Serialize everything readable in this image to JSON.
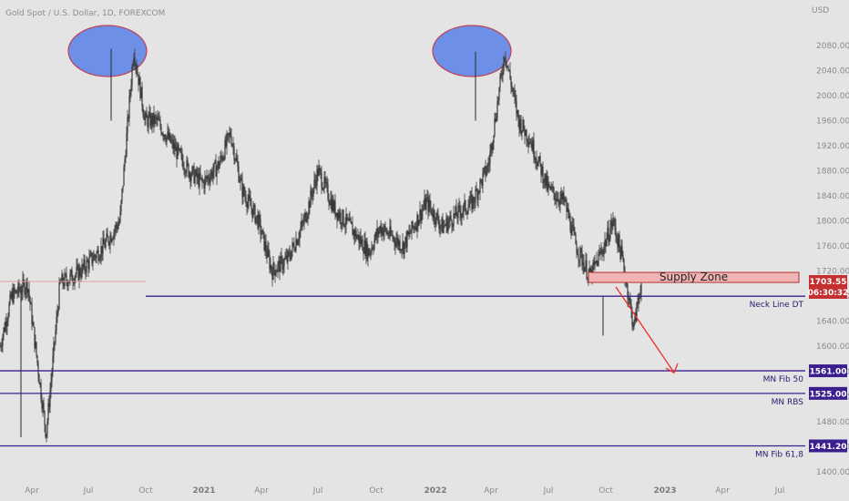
{
  "header": {
    "symbol_title": "Gold Spot / U.S. Dollar, 1D, FOREXCOM"
  },
  "chart_data": {
    "type": "candlestick",
    "title": "Gold Spot / U.S. Dollar, 1D, FOREXCOM",
    "currency_label": "USD",
    "y_ticks": [
      2080,
      2040,
      2000,
      1960,
      1920,
      1880,
      1840,
      1800,
      1760,
      1720,
      1680,
      1640,
      1600,
      1560,
      1520,
      1480,
      1440,
      1400
    ],
    "ylim": [
      1390,
      2115
    ],
    "x_ticks": [
      {
        "label": "Apr",
        "year": false
      },
      {
        "label": "Jul",
        "year": false
      },
      {
        "label": "Oct",
        "year": false
      },
      {
        "label": "2021",
        "year": true
      },
      {
        "label": "Apr",
        "year": false
      },
      {
        "label": "Jul",
        "year": false
      },
      {
        "label": "Oct",
        "year": false
      },
      {
        "label": "2022",
        "year": true
      },
      {
        "label": "Apr",
        "year": false
      },
      {
        "label": "Jul",
        "year": false
      },
      {
        "label": "Oct",
        "year": false
      },
      {
        "label": "2023",
        "year": true
      },
      {
        "label": "Apr",
        "year": false
      },
      {
        "label": "Jul",
        "year": false
      }
    ],
    "price_path": [
      [
        2020.0,
        1600
      ],
      [
        2020.05,
        1680
      ],
      [
        2020.12,
        1700
      ],
      [
        2020.2,
        1460
      ],
      [
        2020.26,
        1700
      ],
      [
        2020.35,
        1720
      ],
      [
        2020.45,
        1760
      ],
      [
        2020.52,
        1800
      ],
      [
        2020.58,
        2075
      ],
      [
        2020.63,
        1960
      ],
      [
        2020.68,
        1960
      ],
      [
        2020.75,
        1920
      ],
      [
        2020.82,
        1880
      ],
      [
        2020.88,
        1860
      ],
      [
        2020.95,
        1890
      ],
      [
        2021.0,
        1940
      ],
      [
        2021.05,
        1850
      ],
      [
        2021.12,
        1800
      ],
      [
        2021.18,
        1720
      ],
      [
        2021.25,
        1740
      ],
      [
        2021.32,
        1800
      ],
      [
        2021.38,
        1880
      ],
      [
        2021.45,
        1820
      ],
      [
        2021.52,
        1790
      ],
      [
        2021.6,
        1750
      ],
      [
        2021.65,
        1790
      ],
      [
        2021.75,
        1760
      ],
      [
        2021.85,
        1830
      ],
      [
        2021.92,
        1790
      ],
      [
        2021.98,
        1810
      ],
      [
        2022.05,
        1830
      ],
      [
        2022.12,
        1890
      ],
      [
        2022.19,
        2070
      ],
      [
        2022.25,
        1960
      ],
      [
        2022.3,
        1930
      ],
      [
        2022.38,
        1850
      ],
      [
        2022.45,
        1830
      ],
      [
        2022.5,
        1760
      ],
      [
        2022.56,
        1710
      ],
      [
        2022.62,
        1760
      ],
      [
        2022.66,
        1800
      ],
      [
        2022.7,
        1740
      ],
      [
        2022.75,
        1630
      ],
      [
        2022.78,
        1700
      ]
    ],
    "peaks": [
      {
        "date": 2020.6,
        "price": 2075,
        "highlight": "ellipse"
      },
      {
        "date": 2022.19,
        "price": 2070,
        "highlight": "ellipse"
      }
    ],
    "levels": [
      {
        "label": "Neck Line DT",
        "price": 1680,
        "badge": false
      },
      {
        "label": "MN Fib 50",
        "price": 1561,
        "badge": true,
        "badge_text": "1561.00"
      },
      {
        "label": "MN RBS",
        "price": 1525,
        "badge": true,
        "badge_text": "1525.00"
      },
      {
        "label": "MN Fib 61,8",
        "price": 1441.2,
        "badge": true,
        "badge_text": "1441.20"
      }
    ],
    "supply_zone": {
      "label": "Supply Zone",
      "from_date": 2022.73,
      "to_date": 2023.29,
      "price_low": 1702,
      "price_high": 1718
    },
    "projection_arrow": {
      "from": [
        2022.8,
        1695
      ],
      "to": [
        2023.06,
        1560
      ]
    },
    "current_price": {
      "value": "1703.55",
      "countdown": "06:30:32"
    }
  }
}
